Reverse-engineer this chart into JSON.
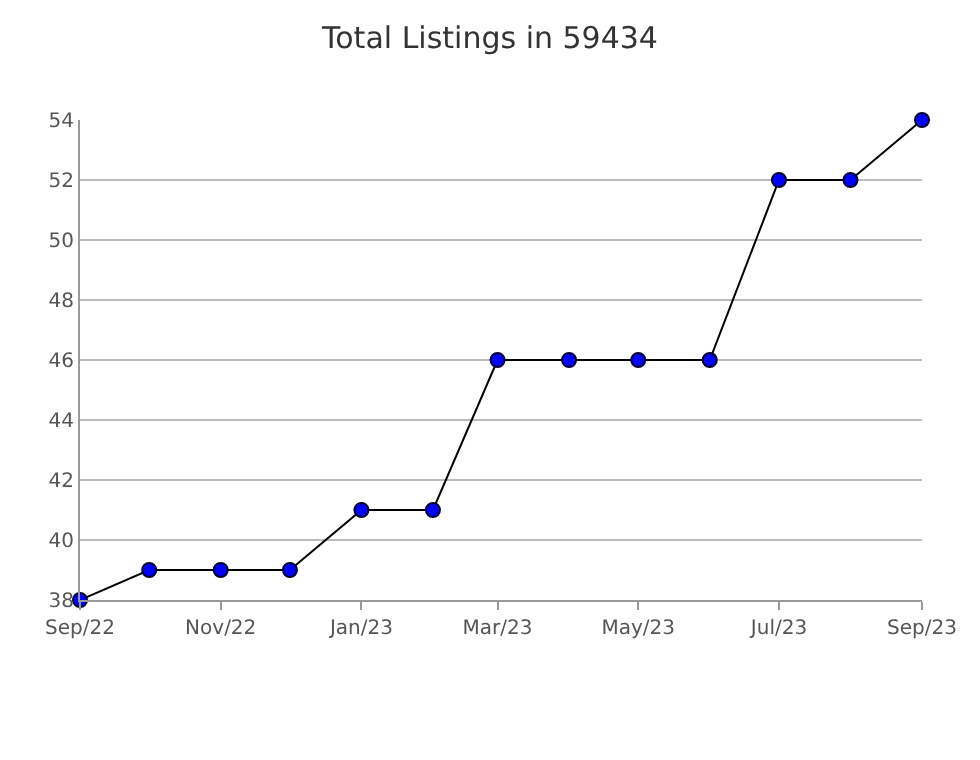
{
  "chart_data": {
    "type": "line",
    "title": "Total Listings in 59434",
    "x": [
      "2022-09",
      "2022-10",
      "2022-11",
      "2022-12",
      "2023-01",
      "2023-02",
      "2023-03",
      "2023-04",
      "2023-05",
      "2023-06",
      "2023-07",
      "2023-08",
      "2023-09"
    ],
    "series": [
      {
        "color": "#0000ff",
        "values": [
          38,
          39,
          39,
          39,
          41,
          41,
          46,
          46,
          46,
          46,
          52,
          52,
          54
        ]
      }
    ],
    "xlim": [
      "2022-09",
      "2023-09"
    ],
    "xticks": [
      {
        "value": "2022-09",
        "label": "Sep/22"
      },
      {
        "value": "2022-11",
        "label": "Nov/22"
      },
      {
        "value": "2023-01",
        "label": "Jan/23"
      },
      {
        "value": "2023-03",
        "label": "Mar/23"
      },
      {
        "value": "2023-05",
        "label": "May/23"
      },
      {
        "value": "2023-07",
        "label": "Jul/23"
      },
      {
        "value": "2023-09",
        "label": "Sep/23"
      }
    ],
    "ylim": [
      38,
      54
    ],
    "yticks": [
      38,
      40,
      42,
      44,
      46,
      48,
      50,
      52,
      54
    ],
    "grid": "y",
    "marker": "circle",
    "line_style": "solid",
    "legend": false
  }
}
